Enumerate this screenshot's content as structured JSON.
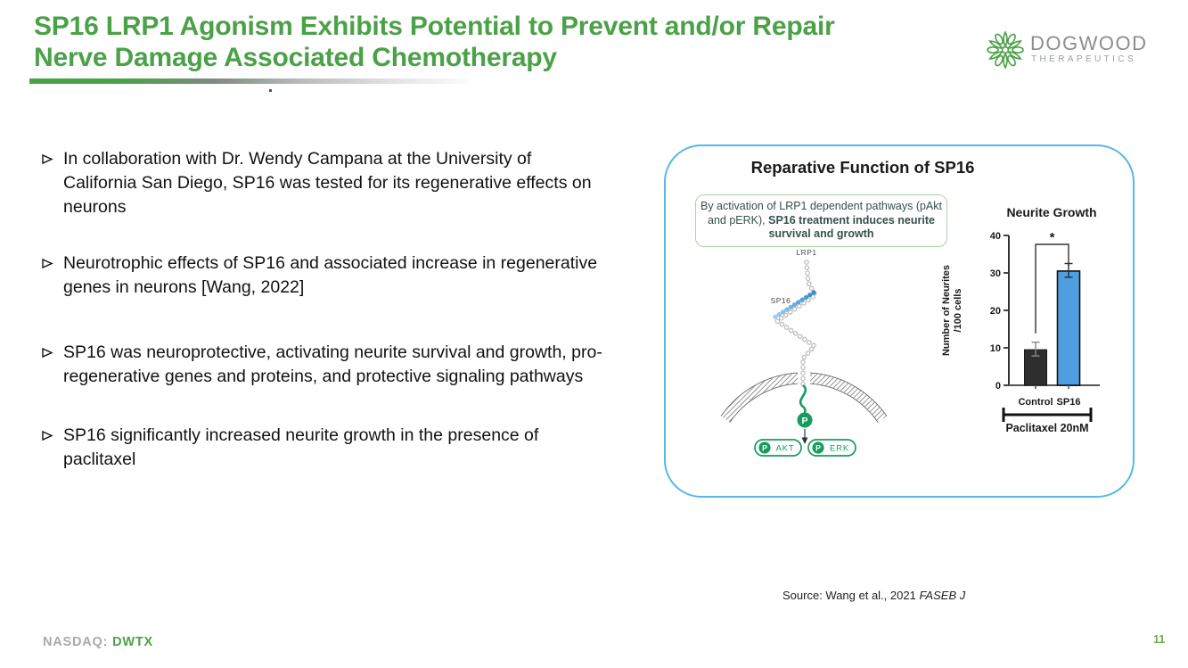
{
  "header": {
    "title_lines": [
      "SP16 LRP1 Agonism Exhibits Potential to Prevent and/or Repair",
      "Nerve Damage Associated Chemotherapy"
    ],
    "logo": {
      "name": "DOGWOOD",
      "sub": "THERAPEUTICS"
    }
  },
  "bullets": [
    {
      "marker": "➢",
      "text": "In collaboration with Dr. Wendy Campana at the University of California San Diego, SP16 was tested for its regenerative effects on neurons"
    },
    {
      "marker": "➢",
      "text": "Neurotrophic effects of SP16 and associated increase in regenerative genes in neurons [Wang, 2022]"
    },
    {
      "marker": "➢",
      "text": "SP16 was neuroprotective, activating neurite survival and growth, pro-regenerative genes and proteins, and protective signaling pathways"
    },
    {
      "marker": "➢",
      "text": "SP16 significantly increased neurite growth in the presence of paclitaxel"
    }
  ],
  "panel": {
    "title": "Reparative Function of SP16",
    "callout": {
      "normal": "By activation of LRP1 dependent pathways (pAkt and pERK), ",
      "bold": "SP16 treatment induces neurite survival and growth"
    },
    "diagram": {
      "receptor_label": "LRP1",
      "ligand_label": "SP16",
      "phospho_label": "P",
      "node1": "AKT",
      "node2": "ERK"
    }
  },
  "chart_data": {
    "type": "bar",
    "title": "Neurite Growth",
    "ylabel_lines": [
      "Number of Neurites",
      "/100 cells"
    ],
    "categories": [
      "Control",
      "SP16"
    ],
    "values": [
      9.5,
      30.5
    ],
    "errors": [
      2,
      2
    ],
    "bar_colors": [
      "#2e2e2e",
      "#4f9fe0"
    ],
    "bar_edge_colors": [
      "#1a1a1a",
      "#111111"
    ],
    "ylim": [
      0,
      40
    ],
    "yticks": [
      0,
      10,
      20,
      30,
      40
    ],
    "significance": "*",
    "group_label": "Paclitaxel 20nM",
    "grid": false,
    "legend": false
  },
  "source": {
    "prefix": "Source:  Wang et al., 2021 ",
    "journal": "FASEB J"
  },
  "footer": {
    "exchange_label": "NASDAQ:",
    "ticker": "DWTX",
    "page_number": "11"
  },
  "colors": {
    "title_green": "#4aa147",
    "panel_border": "#56b8e8",
    "diagram_green": "#169c5f",
    "callout_border": "#a8d5a0",
    "chain_gray": "#b9b9b9",
    "ligand_blue": "#4aa3d9"
  }
}
